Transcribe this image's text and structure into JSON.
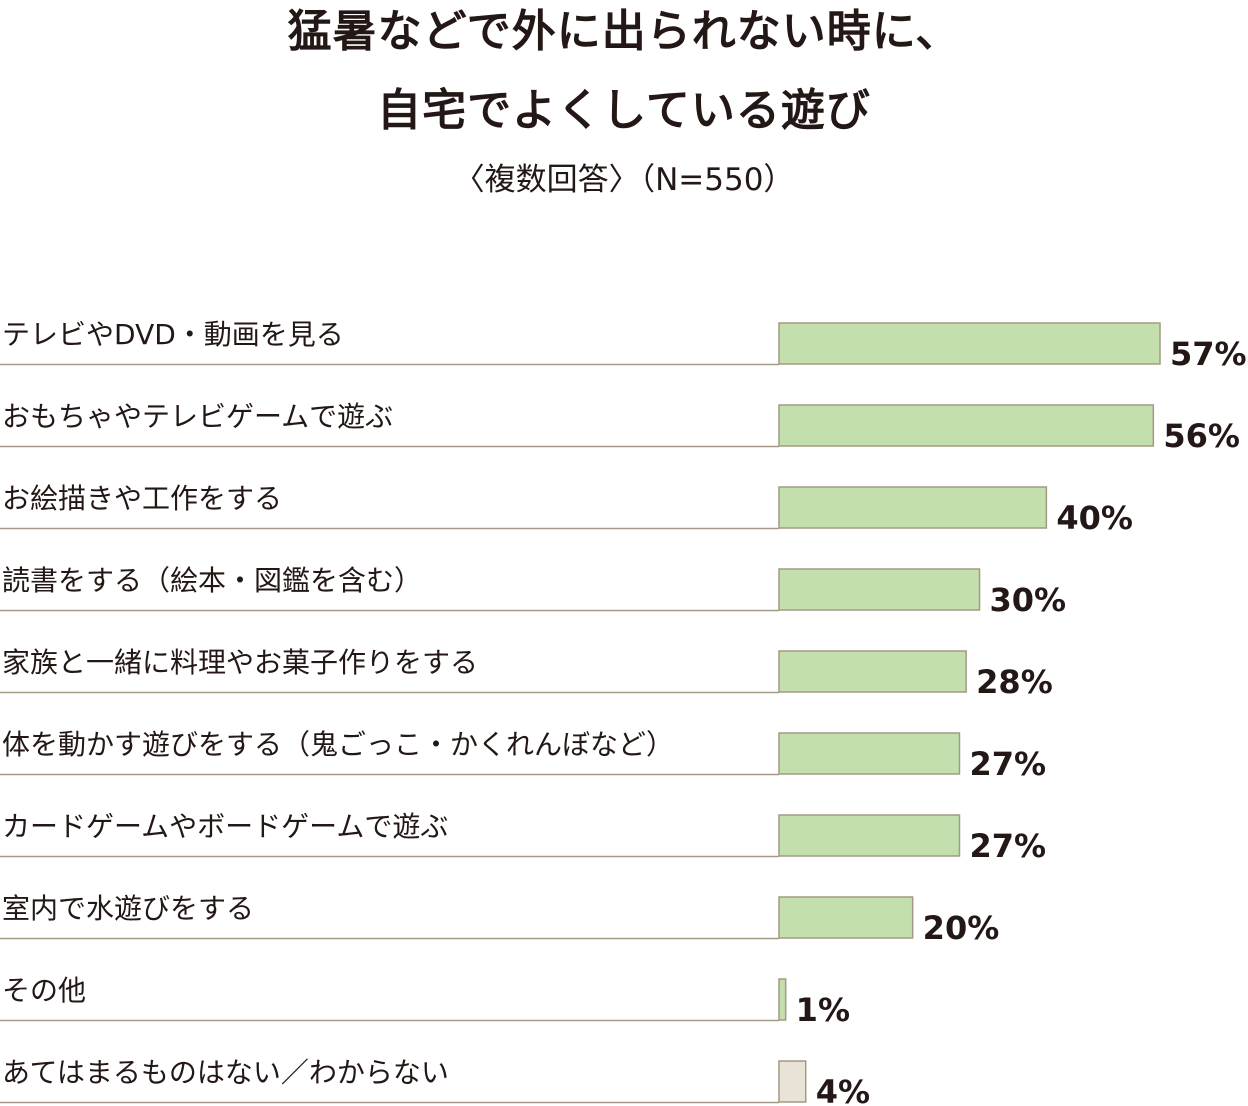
{
  "title_line1": "猛暑などで外に出られない時に、",
  "title_line2": "自宅でよくしている遊び",
  "subtitle": "〈複数回答〉（N=550）",
  "colors": {
    "bar": "#c3dfae",
    "bar_other": "#e8e3d6",
    "bar_stroke": "#a39a85",
    "separator": "#a39a85",
    "text": "#231815"
  },
  "chart_data": {
    "type": "bar",
    "orientation": "horizontal",
    "unit": "%",
    "xlim": [
      0,
      57
    ],
    "categories": [
      "テレビやDVD・動画を見る",
      "おもちゃやテレビゲームで遊ぶ",
      "お絵描きや工作をする",
      "読書をする（絵本・図鑑を含む）",
      "家族と一緒に料理やお菓子作りをする",
      "体を動かす遊びをする（鬼ごっこ・かくれんぼなど）",
      "カードゲームやボードゲームで遊ぶ",
      "室内で水遊びをする",
      "その他",
      "あてはまるものはない／わからない"
    ],
    "values": [
      57,
      56,
      40,
      30,
      28,
      27,
      27,
      20,
      1,
      4
    ],
    "value_labels": [
      "57%",
      "56%",
      "40%",
      "30%",
      "28%",
      "27%",
      "27%",
      "20%",
      "1%",
      "4%"
    ],
    "bar_colors": [
      "#c3dfae",
      "#c3dfae",
      "#c3dfae",
      "#c3dfae",
      "#c3dfae",
      "#c3dfae",
      "#c3dfae",
      "#c3dfae",
      "#c3dfae",
      "#e8e3d6"
    ]
  }
}
